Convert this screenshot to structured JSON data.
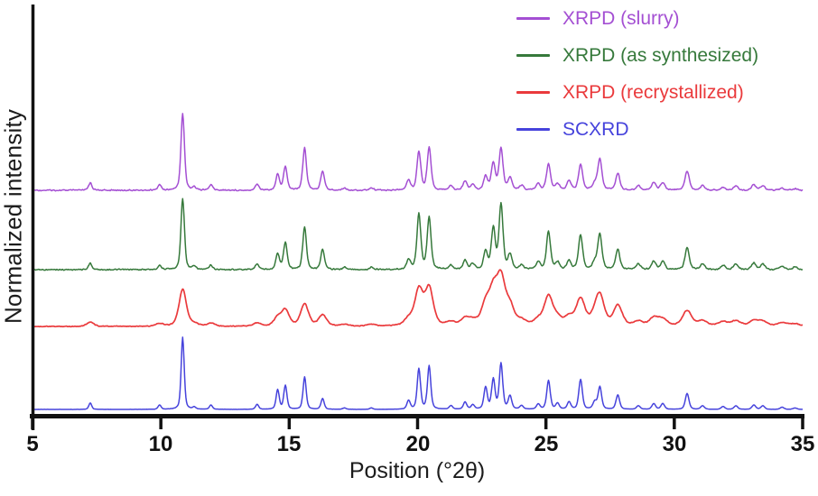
{
  "figure": {
    "background": "#ffffff"
  },
  "legend": {
    "items": [
      {
        "label": "XRPD (slurry)",
        "color": "#a44fd3"
      },
      {
        "label": "XRPD (as synthesized)",
        "color": "#36793b"
      },
      {
        "label": "XRPD (recrystallized)",
        "color": "#ea3a3c"
      },
      {
        "label": "SCXRD",
        "color": "#4643dc"
      }
    ]
  },
  "chart_data": {
    "type": "line",
    "title": "",
    "xlabel": "Position (°2θ)",
    "ylabel": "Normalized intensity",
    "xlim": [
      5,
      35
    ],
    "x_ticks": [
      5,
      10,
      15,
      20,
      25,
      30,
      35
    ],
    "x_tick_labels": [
      "5",
      "10",
      "15",
      "20",
      "25",
      "30",
      "35"
    ],
    "grid": false,
    "legend_position": "top-right",
    "stacked_offset_traces": true,
    "y_axis_unlabeled_ticks": true,
    "series": [
      {
        "name": "XRPD (slurry)",
        "color": "#a44fd3",
        "profile": "experimental",
        "peak_fwhm_deg": 0.15,
        "peaks": [
          [
            7.25,
            0.1
          ],
          [
            9.95,
            0.07
          ],
          [
            10.85,
            1.0
          ],
          [
            11.3,
            0.04
          ],
          [
            11.95,
            0.07
          ],
          [
            13.75,
            0.08
          ],
          [
            14.55,
            0.2
          ],
          [
            14.85,
            0.3
          ],
          [
            15.6,
            0.55
          ],
          [
            16.3,
            0.25
          ],
          [
            17.15,
            0.03
          ],
          [
            18.2,
            0.03
          ],
          [
            19.65,
            0.13
          ],
          [
            20.05,
            0.5
          ],
          [
            20.45,
            0.55
          ],
          [
            21.3,
            0.06
          ],
          [
            21.85,
            0.12
          ],
          [
            22.15,
            0.07
          ],
          [
            22.65,
            0.18
          ],
          [
            22.95,
            0.35
          ],
          [
            23.25,
            0.54
          ],
          [
            23.6,
            0.16
          ],
          [
            24.05,
            0.06
          ],
          [
            24.7,
            0.08
          ],
          [
            25.1,
            0.34
          ],
          [
            25.45,
            0.08
          ],
          [
            25.9,
            0.12
          ],
          [
            26.35,
            0.33
          ],
          [
            26.9,
            0.08
          ],
          [
            27.1,
            0.4
          ],
          [
            27.8,
            0.22
          ],
          [
            28.6,
            0.06
          ],
          [
            29.2,
            0.1
          ],
          [
            29.55,
            0.1
          ],
          [
            30.5,
            0.25
          ],
          [
            31.1,
            0.06
          ],
          [
            31.9,
            0.04
          ],
          [
            32.4,
            0.06
          ],
          [
            33.1,
            0.07
          ],
          [
            33.45,
            0.06
          ],
          [
            34.2,
            0.03
          ],
          [
            34.7,
            0.02
          ]
        ]
      },
      {
        "name": "XRPD (as synthesized)",
        "color": "#36793b",
        "profile": "experimental",
        "peak_fwhm_deg": 0.15,
        "peaks": [
          [
            7.25,
            0.09
          ],
          [
            9.95,
            0.06
          ],
          [
            10.85,
            1.0
          ],
          [
            11.3,
            0.04
          ],
          [
            11.95,
            0.06
          ],
          [
            13.75,
            0.08
          ],
          [
            14.55,
            0.22
          ],
          [
            14.85,
            0.38
          ],
          [
            15.6,
            0.6
          ],
          [
            16.3,
            0.28
          ],
          [
            17.15,
            0.03
          ],
          [
            18.2,
            0.03
          ],
          [
            19.65,
            0.14
          ],
          [
            20.05,
            0.78
          ],
          [
            20.45,
            0.73
          ],
          [
            21.3,
            0.06
          ],
          [
            21.85,
            0.13
          ],
          [
            22.15,
            0.08
          ],
          [
            22.65,
            0.25
          ],
          [
            22.95,
            0.57
          ],
          [
            23.25,
            0.91
          ],
          [
            23.6,
            0.2
          ],
          [
            24.05,
            0.06
          ],
          [
            24.7,
            0.1
          ],
          [
            25.1,
            0.53
          ],
          [
            25.45,
            0.1
          ],
          [
            25.9,
            0.12
          ],
          [
            26.35,
            0.48
          ],
          [
            26.9,
            0.1
          ],
          [
            27.1,
            0.5
          ],
          [
            27.8,
            0.28
          ],
          [
            28.6,
            0.08
          ],
          [
            29.2,
            0.12
          ],
          [
            29.55,
            0.12
          ],
          [
            30.5,
            0.3
          ],
          [
            31.1,
            0.08
          ],
          [
            31.9,
            0.06
          ],
          [
            32.4,
            0.08
          ],
          [
            33.1,
            0.09
          ],
          [
            33.45,
            0.08
          ],
          [
            34.2,
            0.05
          ],
          [
            34.7,
            0.04
          ]
        ]
      },
      {
        "name": "XRPD (recrystallized)",
        "color": "#ea3a3c",
        "profile": "experimental-broadened",
        "peak_fwhm_deg": 0.32,
        "peaks": [
          [
            7.25,
            0.1
          ],
          [
            9.95,
            0.06
          ],
          [
            10.85,
            0.84
          ],
          [
            11.3,
            0.05
          ],
          [
            11.95,
            0.07
          ],
          [
            13.75,
            0.07
          ],
          [
            14.55,
            0.18
          ],
          [
            14.85,
            0.35
          ],
          [
            15.6,
            0.5
          ],
          [
            16.3,
            0.25
          ],
          [
            17.15,
            0.04
          ],
          [
            18.2,
            0.04
          ],
          [
            19.65,
            0.15
          ],
          [
            20.05,
            0.8
          ],
          [
            20.45,
            0.84
          ],
          [
            21.3,
            0.08
          ],
          [
            21.85,
            0.15
          ],
          [
            22.15,
            0.1
          ],
          [
            22.65,
            0.45
          ],
          [
            22.95,
            0.7
          ],
          [
            23.25,
            1.0
          ],
          [
            23.6,
            0.4
          ],
          [
            24.05,
            0.1
          ],
          [
            24.7,
            0.12
          ],
          [
            25.1,
            0.65
          ],
          [
            25.45,
            0.15
          ],
          [
            25.9,
            0.18
          ],
          [
            26.35,
            0.6
          ],
          [
            26.9,
            0.15
          ],
          [
            27.1,
            0.65
          ],
          [
            27.8,
            0.45
          ],
          [
            28.6,
            0.1
          ],
          [
            29.2,
            0.18
          ],
          [
            29.55,
            0.15
          ],
          [
            30.5,
            0.35
          ],
          [
            31.1,
            0.12
          ],
          [
            31.9,
            0.1
          ],
          [
            32.4,
            0.12
          ],
          [
            33.1,
            0.12
          ],
          [
            33.45,
            0.1
          ],
          [
            34.2,
            0.08
          ],
          [
            34.7,
            0.06
          ]
        ]
      },
      {
        "name": "SCXRD",
        "color": "#4643dc",
        "profile": "smooth-calculated",
        "peak_fwhm_deg": 0.13,
        "peaks": [
          [
            7.25,
            0.09
          ],
          [
            9.95,
            0.06
          ],
          [
            10.85,
            1.0
          ],
          [
            11.3,
            0.03
          ],
          [
            11.95,
            0.06
          ],
          [
            13.75,
            0.07
          ],
          [
            14.55,
            0.27
          ],
          [
            14.85,
            0.33
          ],
          [
            15.6,
            0.45
          ],
          [
            16.3,
            0.15
          ],
          [
            17.15,
            0.02
          ],
          [
            18.2,
            0.02
          ],
          [
            19.65,
            0.12
          ],
          [
            20.05,
            0.56
          ],
          [
            20.45,
            0.6
          ],
          [
            21.3,
            0.05
          ],
          [
            21.85,
            0.1
          ],
          [
            22.15,
            0.06
          ],
          [
            22.65,
            0.3
          ],
          [
            22.95,
            0.41
          ],
          [
            23.25,
            0.63
          ],
          [
            23.6,
            0.18
          ],
          [
            24.05,
            0.05
          ],
          [
            24.7,
            0.07
          ],
          [
            25.1,
            0.4
          ],
          [
            25.45,
            0.08
          ],
          [
            25.9,
            0.1
          ],
          [
            26.35,
            0.41
          ],
          [
            26.9,
            0.1
          ],
          [
            27.1,
            0.31
          ],
          [
            27.8,
            0.2
          ],
          [
            28.6,
            0.05
          ],
          [
            29.2,
            0.08
          ],
          [
            29.55,
            0.08
          ],
          [
            30.5,
            0.22
          ],
          [
            31.1,
            0.05
          ],
          [
            31.9,
            0.04
          ],
          [
            32.4,
            0.05
          ],
          [
            33.1,
            0.06
          ],
          [
            33.45,
            0.05
          ],
          [
            34.2,
            0.03
          ],
          [
            34.7,
            0.02
          ]
        ]
      }
    ]
  }
}
